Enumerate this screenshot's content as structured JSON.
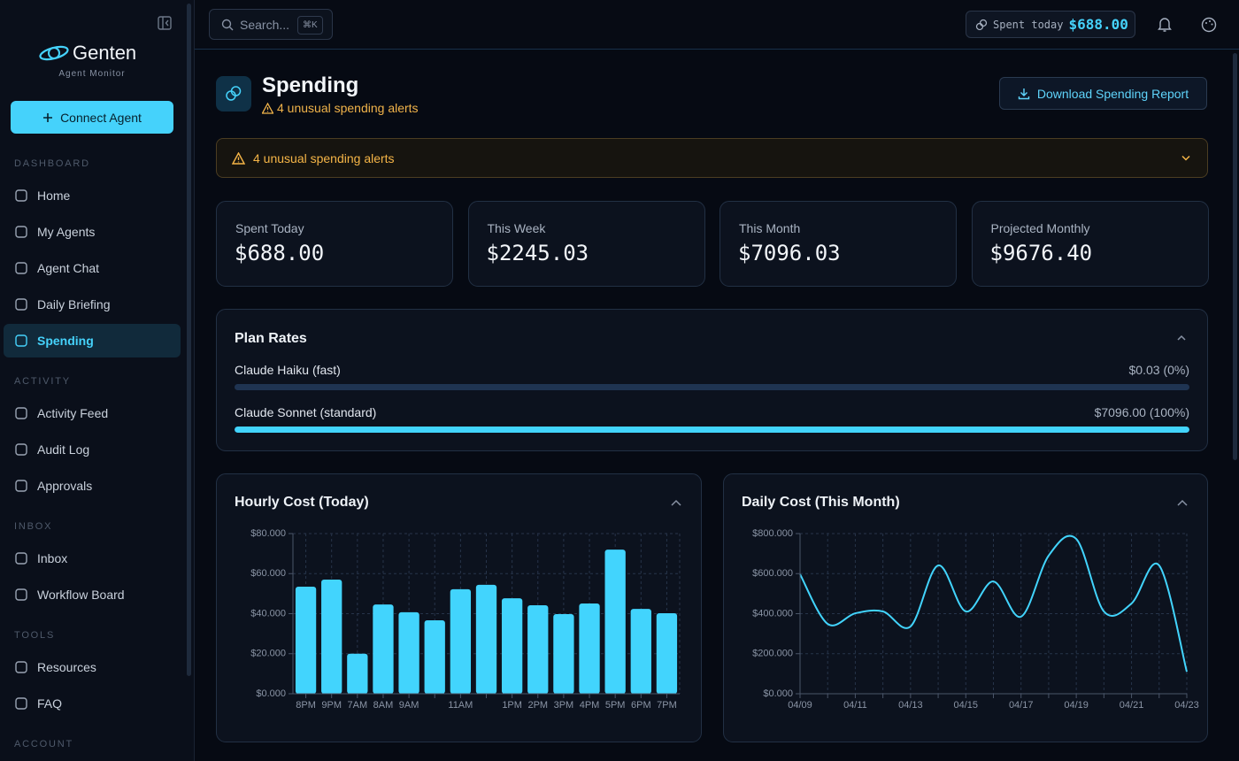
{
  "sidebar": {
    "brand": "Genten",
    "brand_subtitle": "Agent Monitor",
    "connect_button": "Connect Agent",
    "sections": [
      {
        "title": "DASHBOARD",
        "items": [
          "Home",
          "My Agents",
          "Agent Chat",
          "Daily Briefing",
          "Spending"
        ]
      },
      {
        "title": "ACTIVITY",
        "items": [
          "Activity Feed",
          "Audit Log",
          "Approvals"
        ]
      },
      {
        "title": "INBOX",
        "items": [
          "Inbox",
          "Workflow Board"
        ]
      },
      {
        "title": "TOOLS",
        "items": [
          "Resources",
          "FAQ"
        ]
      },
      {
        "title": "ACCOUNT",
        "items": []
      }
    ],
    "active_item": "Spending"
  },
  "topbar": {
    "search_placeholder": "Search...",
    "search_shortcut": "⌘K",
    "spent_label": "Spent today",
    "spent_value": "$688.00"
  },
  "header": {
    "title": "Spending",
    "subtitle": "4 unusual spending alerts",
    "download_button": "Download Spending Report"
  },
  "alert_banner": "4 unusual spending alerts",
  "stats": [
    {
      "label": "Spent Today",
      "value": "$688.00"
    },
    {
      "label": "This Week",
      "value": "$2245.03"
    },
    {
      "label": "This Month",
      "value": "$7096.03"
    },
    {
      "label": "Projected Monthly",
      "value": "$9676.40"
    }
  ],
  "plan_rates": {
    "title": "Plan Rates",
    "rows": [
      {
        "name": "Claude Haiku (fast)",
        "label": "$0.03 (0%)",
        "share": 0
      },
      {
        "name": "Claude Sonnet (standard)",
        "label": "$7096.00 (100%)",
        "share": 100
      }
    ]
  },
  "chart_data": [
    {
      "type": "bar",
      "title": "Hourly Cost (Today)",
      "color": "#42d4fd",
      "grid": true,
      "categories": [
        "8PM",
        "9PM",
        "7AM",
        "8AM",
        "9AM",
        null,
        "11AM",
        null,
        "1PM",
        "2PM",
        "3PM",
        "4PM",
        "5PM",
        "6PM",
        "7PM"
      ],
      "values": [
        53.5,
        57,
        20,
        44.6,
        40.7,
        36.7,
        52.2,
        54.4,
        47.7,
        44.2,
        39.8,
        45.1,
        72,
        42.4,
        40.2
      ],
      "ylim": [
        0,
        80
      ],
      "yticks": [
        {
          "value": 0,
          "label": "$0.000"
        },
        {
          "value": 20,
          "label": "$20.000"
        },
        {
          "value": 40,
          "label": "$40.000"
        },
        {
          "value": 60,
          "label": "$60.000"
        },
        {
          "value": 80,
          "label": "$80.000"
        }
      ]
    },
    {
      "type": "line",
      "title": "Daily Cost (This Month)",
      "color": "#42d4fd",
      "grid": true,
      "smooth": true,
      "categories": [
        "04/09",
        null,
        "04/11",
        null,
        "04/13",
        null,
        "04/15",
        null,
        "04/17",
        null,
        "04/19",
        null,
        "04/21",
        null,
        "04/23"
      ],
      "values": [
        597,
        349,
        402,
        411,
        336,
        641,
        411,
        561,
        385,
        690,
        773,
        411,
        451,
        641,
        110
      ],
      "ylim": [
        0,
        800
      ],
      "yticks": [
        {
          "value": 0,
          "label": "$0.000"
        },
        {
          "value": 200,
          "label": "$200.000"
        },
        {
          "value": 400,
          "label": "$400.000"
        },
        {
          "value": 600,
          "label": "$600.000"
        },
        {
          "value": 800,
          "label": "$800.000"
        }
      ]
    }
  ]
}
